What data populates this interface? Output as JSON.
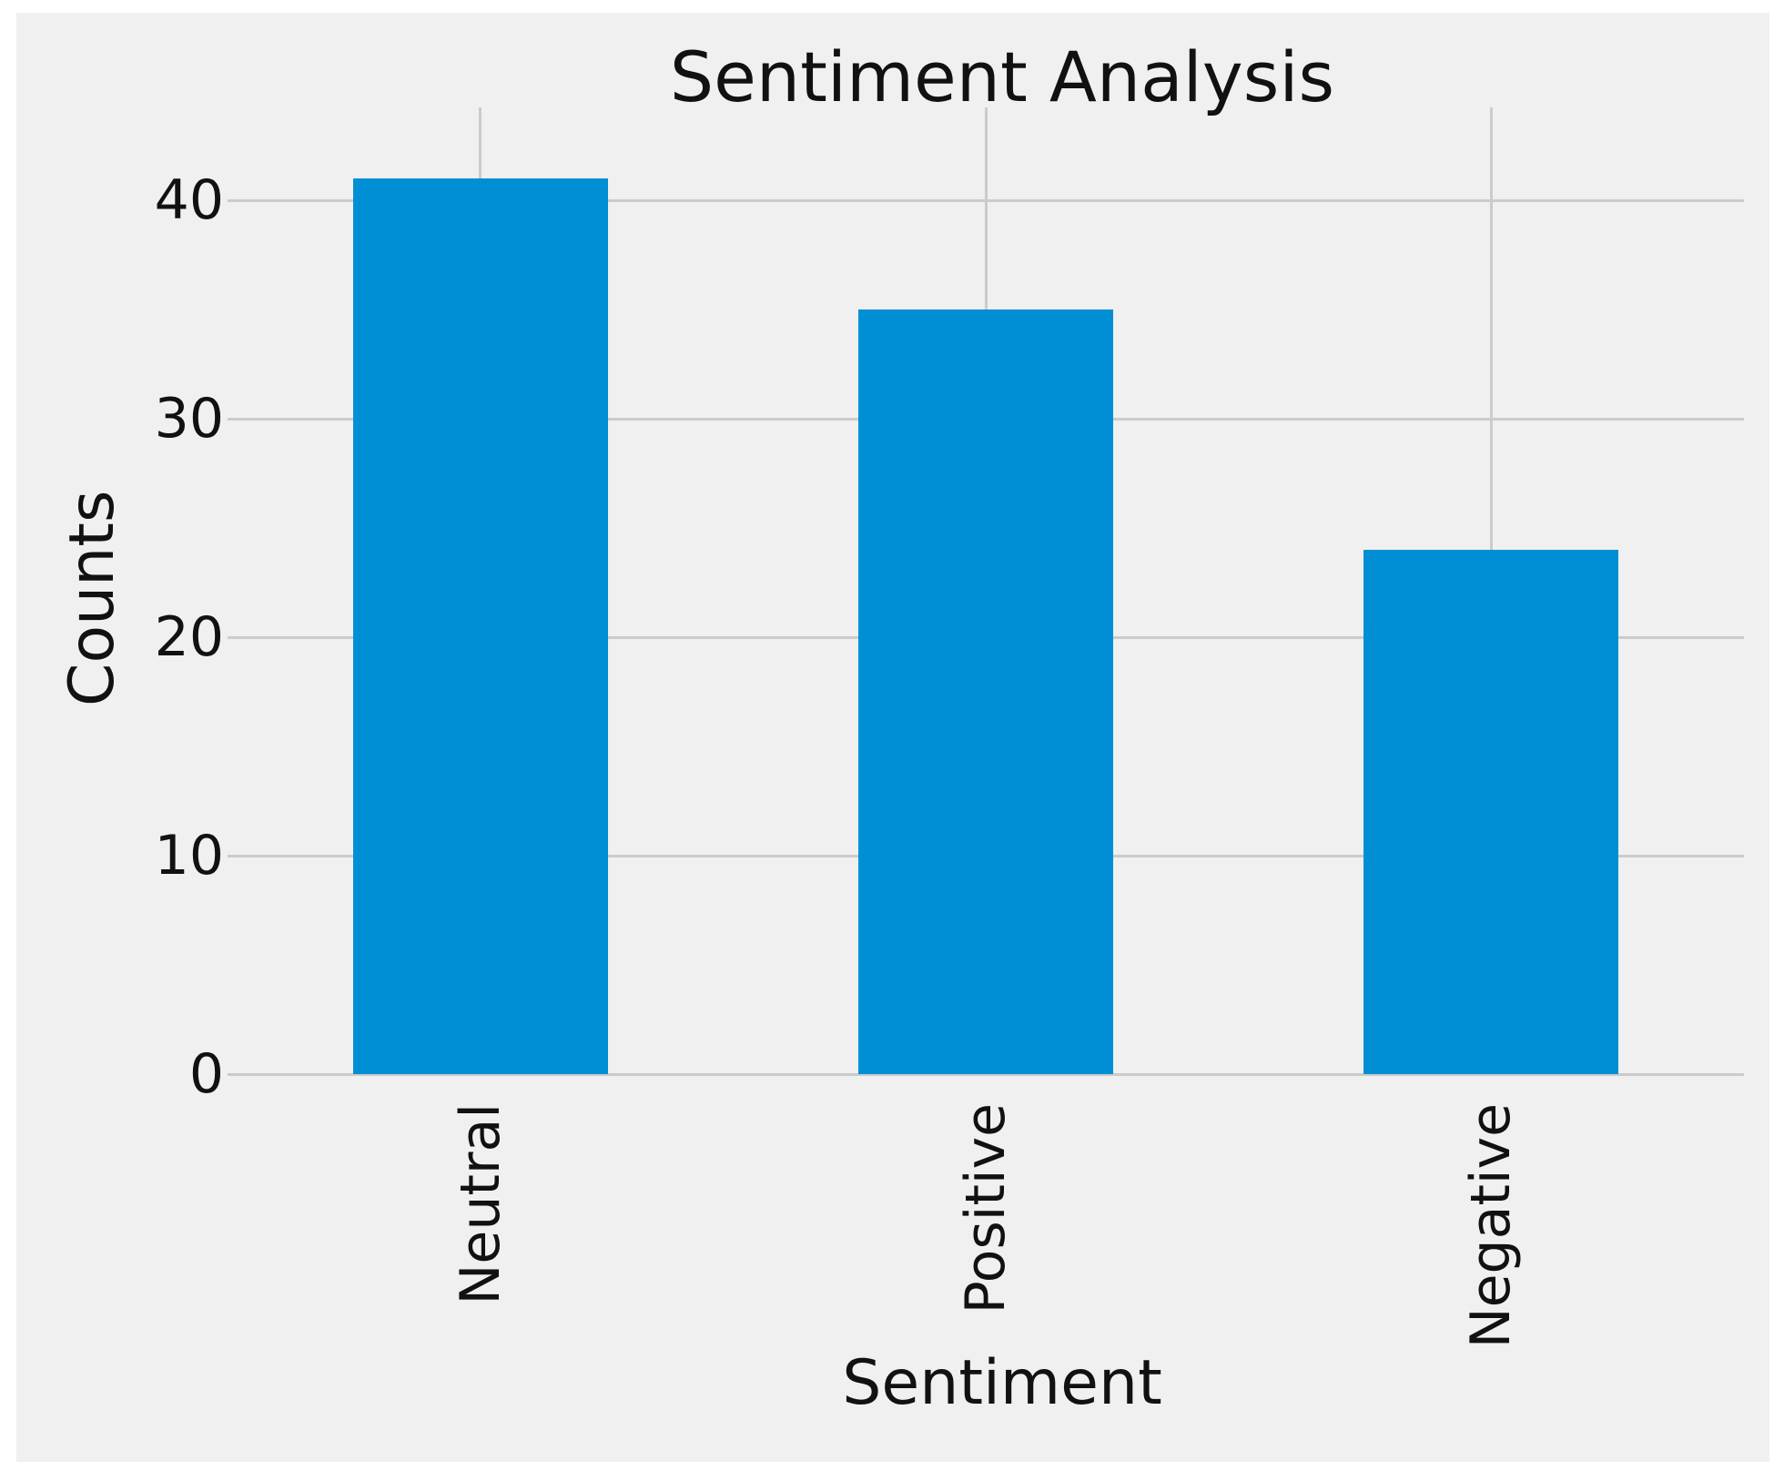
{
  "chart_data": {
    "type": "bar",
    "title": "Sentiment Analysis",
    "xlabel": "Sentiment",
    "ylabel": "Counts",
    "categories": [
      "Neutral",
      "Positive",
      "Negative"
    ],
    "values": [
      41,
      35,
      24
    ],
    "yticks": [
      0,
      10,
      20,
      30,
      40
    ],
    "ylim": [
      0,
      44
    ],
    "grid": true,
    "legend": "none",
    "bar_color": "#008fd5",
    "background_color": "#f0f0f0",
    "gridline_color": "#cbcbcb",
    "text_color": "#111111"
  }
}
